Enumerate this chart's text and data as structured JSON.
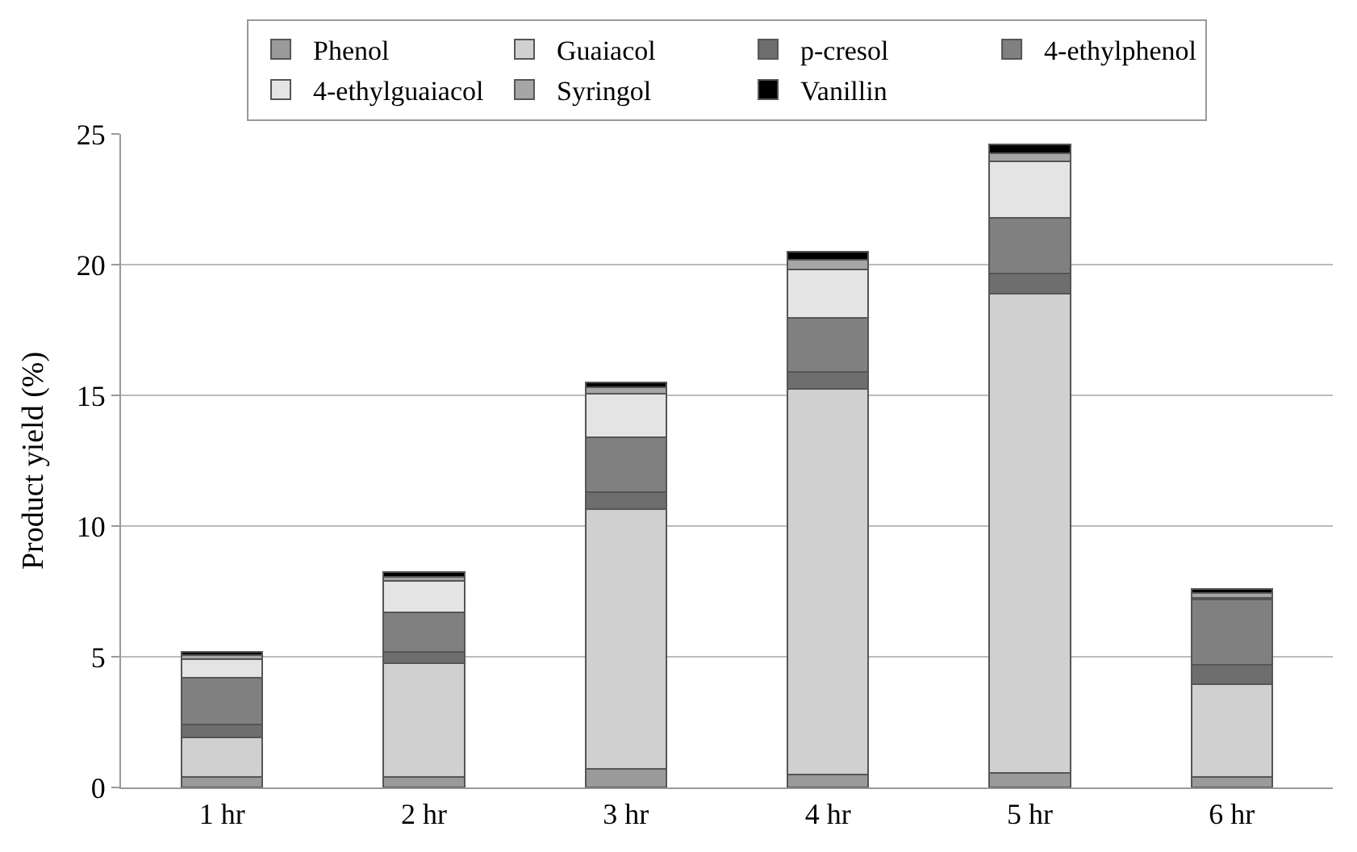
{
  "chart_data": {
    "type": "bar",
    "stacked": true,
    "ylabel": "Product yield (%)",
    "categories": [
      "1 hr",
      "2 hr",
      "3 hr",
      "4 hr",
      "5 hr",
      "6 hr"
    ],
    "series": [
      {
        "name": "Phenol",
        "color": "#9a9a9a",
        "values": [
          0.4,
          0.4,
          0.7,
          0.5,
          0.55,
          0.4
        ]
      },
      {
        "name": "Guaiacol",
        "color": "#d0d0d0",
        "values": [
          1.5,
          4.35,
          9.95,
          14.75,
          18.35,
          3.55
        ]
      },
      {
        "name": "p-cresol",
        "color": "#6e6e6e",
        "values": [
          0.5,
          0.45,
          0.65,
          0.65,
          0.75,
          0.75
        ]
      },
      {
        "name": "4-ethylphenol",
        "color": "#808080",
        "values": [
          1.8,
          1.5,
          2.1,
          2.05,
          2.15,
          2.5
        ]
      },
      {
        "name": "4-ethylguaiacol",
        "color": "#e4e4e4",
        "values": [
          0.7,
          1.2,
          1.65,
          1.85,
          2.15,
          0.05
        ]
      },
      {
        "name": "Syringol",
        "color": "#a6a6a6",
        "values": [
          0.15,
          0.15,
          0.25,
          0.4,
          0.3,
          0.2
        ]
      },
      {
        "name": "Vanillin",
        "color": "#000000",
        "values": [
          0.15,
          0.2,
          0.2,
          0.3,
          0.35,
          0.15
        ]
      }
    ],
    "ylim": [
      0,
      25
    ],
    "yticks": [
      0,
      5,
      10,
      15,
      20,
      25
    ],
    "grid": "y",
    "legend": "top"
  }
}
